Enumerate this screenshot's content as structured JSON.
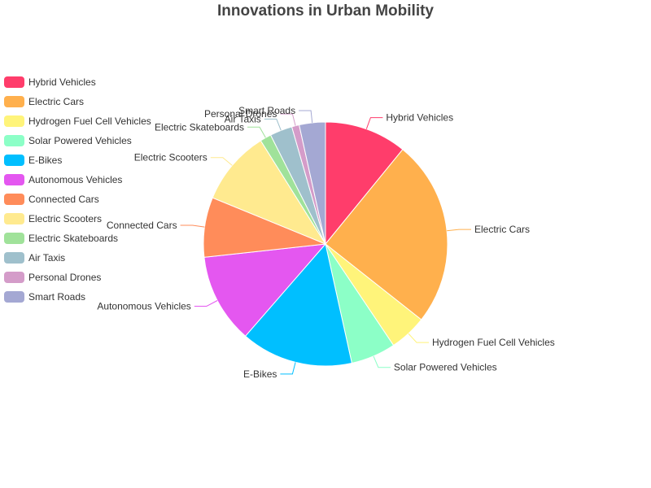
{
  "chart_data": {
    "type": "pie",
    "title": "Innovations in Urban Mobility",
    "legend_position": "left",
    "categories": [
      "Hybrid Vehicles",
      "Electric Cars",
      "Hydrogen Fuel Cell Vehicles",
      "Solar Powered Vehicles",
      "E-Bikes",
      "Autonomous Vehicles",
      "Connected Cars",
      "Electric Scooters",
      "Electric Skateboards",
      "Air Taxis",
      "Personal Drones",
      "Smart Roads"
    ],
    "values": [
      11,
      25,
      5,
      6,
      15,
      12,
      8,
      10,
      1.5,
      3,
      1,
      3.5
    ],
    "colors": [
      "#ff3d6b",
      "#ffb04d",
      "#fff47a",
      "#8cffc7",
      "#00bfff",
      "#e457f0",
      "#ff8c5a",
      "#ffea8f",
      "#a0e29a",
      "#9fc0cc",
      "#d49cc9",
      "#a4a8d3"
    ]
  }
}
